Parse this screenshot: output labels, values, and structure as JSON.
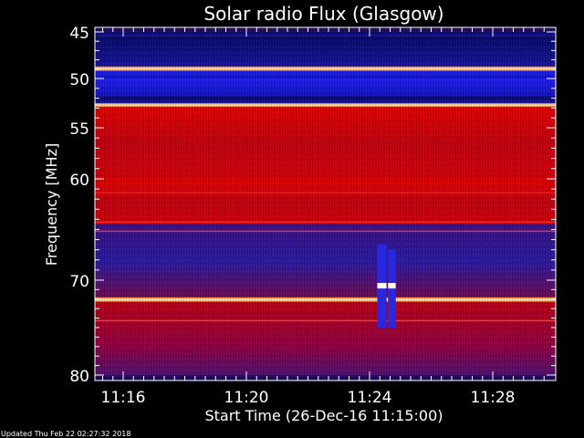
{
  "chart_data": {
    "type": "heatmap",
    "title": "Solar radio Flux (Glasgow)",
    "xlabel": "Start Time (26-Dec-16 11:15:00)",
    "ylabel": "Frequency [MHz]",
    "ylim": [
      45,
      80
    ],
    "y_ticks": [
      45,
      50,
      55,
      60,
      70,
      80
    ],
    "y_tick_labels": [
      "45",
      "50",
      "55",
      "60",
      "70",
      "80"
    ],
    "x_ticks": [
      "11:16",
      "11:20",
      "11:24",
      "11:28"
    ],
    "x_tick_minutes_after_start": [
      1,
      5,
      9,
      13
    ],
    "x_range_minutes_after_start": [
      0,
      15
    ],
    "colors": {
      "background": "#000000",
      "low": "#0a0a70",
      "mid": "#1e1ee6",
      "high": "#d00000",
      "peak": "#ffffe0"
    },
    "bands": [
      {
        "f0": 45.0,
        "f1": 45.5,
        "level": "low"
      },
      {
        "f0": 45.5,
        "f1": 48.7,
        "level": "low"
      },
      {
        "f0": 48.7,
        "f1": 49.2,
        "level": "peak"
      },
      {
        "f0": 49.2,
        "f1": 50.0,
        "level": "mid"
      },
      {
        "f0": 50.0,
        "f1": 51.8,
        "level": "mid"
      },
      {
        "f0": 51.8,
        "f1": 52.5,
        "level": "low"
      },
      {
        "f0": 52.5,
        "f1": 52.9,
        "level": "peak"
      },
      {
        "f0": 52.9,
        "f1": 60.0,
        "level": "high"
      },
      {
        "f0": 60.0,
        "f1": 64.5,
        "level": "high"
      },
      {
        "f0": 64.5,
        "f1": 71.8,
        "level": "low"
      },
      {
        "f0": 71.8,
        "f1": 72.3,
        "level": "peak"
      },
      {
        "f0": 72.3,
        "f1": 80.0,
        "level": "high"
      }
    ],
    "bursts": [
      {
        "t0": 9.25,
        "t1": 9.55,
        "f0": 66.5,
        "f1": 75.0,
        "level": "mid"
      },
      {
        "t0": 9.6,
        "t1": 9.85,
        "f0": 67.0,
        "f1": 75.0,
        "level": "mid"
      }
    ]
  },
  "footer": {
    "updated": "Updated Thu Feb 22 02:27:32 2018"
  }
}
